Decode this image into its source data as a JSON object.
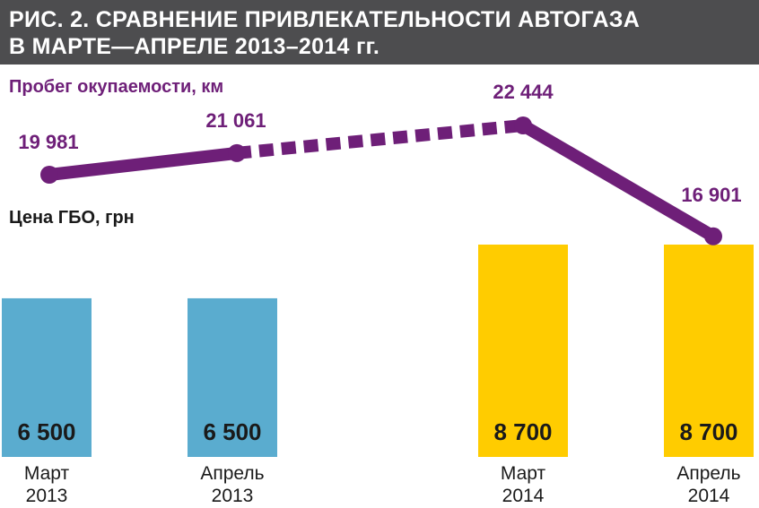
{
  "title": {
    "line1": "РИС. 2. СРАВНЕНИЕ ПРИВЛЕКАТЕЛЬНОСТИ АВТОГАЗА",
    "line2": "В МАРТЕ—АПРЕЛЕ 2013–2014 гг."
  },
  "chart_data": {
    "type": "bar",
    "categories": [
      [
        "Март",
        "2013"
      ],
      [
        "Апрель",
        "2013"
      ],
      [
        "Март",
        "2014"
      ],
      [
        "Апрель",
        "2014"
      ]
    ],
    "series": [
      {
        "name": "Цена ГБО, грн",
        "type": "bar",
        "values": [
          6500,
          6500,
          8700,
          8700
        ],
        "value_labels": [
          "6 500",
          "6 500",
          "8 700",
          "8 700"
        ],
        "colors": [
          "#5aaccf",
          "#5aaccf",
          "#ffcc00",
          "#ffcc00"
        ]
      },
      {
        "name": "Пробег окупаемости, км",
        "type": "line",
        "values": [
          19981,
          21061,
          22444,
          16901
        ],
        "value_labels": [
          "19 981",
          "21 061",
          "22 444",
          "16 901"
        ],
        "color": "#6e1f78",
        "dashed_segments": [
          1
        ]
      }
    ]
  }
}
